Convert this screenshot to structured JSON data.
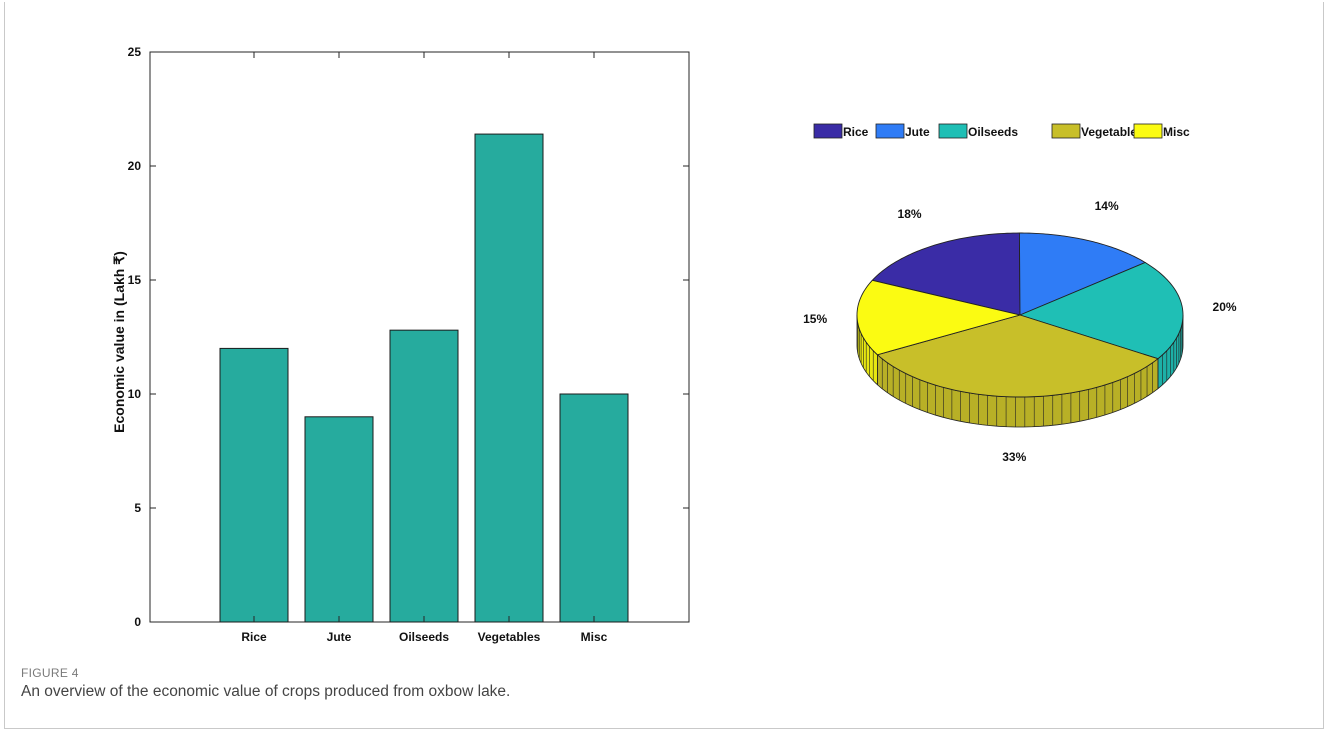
{
  "caption": {
    "label": "FIGURE 4",
    "text": "An overview of the economic value of crops produced from oxbow lake."
  },
  "chart_data": [
    {
      "type": "bar",
      "categories": [
        "Rice",
        "Jute",
        "Oilseeds",
        "Vegetables",
        "Misc"
      ],
      "values": [
        12.0,
        9.0,
        12.8,
        21.4,
        10.0
      ],
      "ylabel": "Economic value in (Lakh ₹)",
      "xlabel": "",
      "ylim": [
        0,
        25
      ],
      "yticks": [
        0,
        5,
        10,
        15,
        20,
        25
      ],
      "bar_color": "#26ab9e",
      "grid": false
    },
    {
      "type": "pie",
      "labels": [
        "Rice",
        "Jute",
        "Oilseeds",
        "Vegetables",
        "Misc"
      ],
      "values": [
        18,
        14,
        20,
        33,
        15
      ],
      "value_labels": [
        "18%",
        "14%",
        "20%",
        "33%",
        "15%"
      ],
      "colors": [
        "#3a2ca6",
        "#2f7cf6",
        "#1fbfb5",
        "#c8bf29",
        "#fbfb12"
      ],
      "legend_position": "top",
      "style": "3d"
    }
  ]
}
